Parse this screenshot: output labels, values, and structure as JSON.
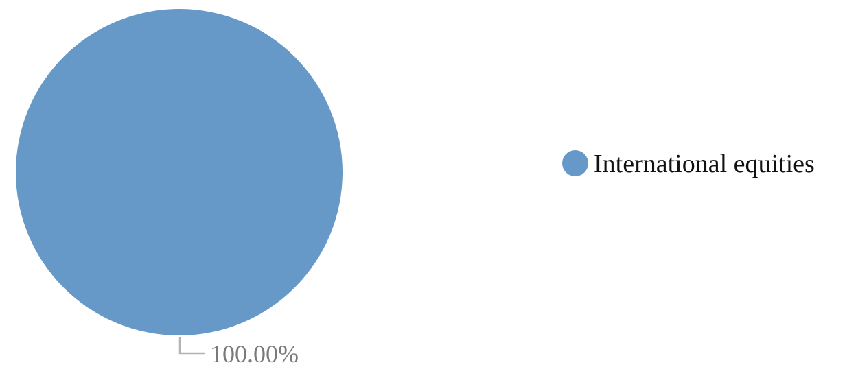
{
  "chart_data": {
    "type": "pie",
    "slices": [
      {
        "label": "International equities",
        "value": 100.0,
        "display": "100.00%",
        "color": "#6699c7"
      }
    ],
    "legend_position": "right",
    "leader_line_color": "#b3b3b3"
  }
}
